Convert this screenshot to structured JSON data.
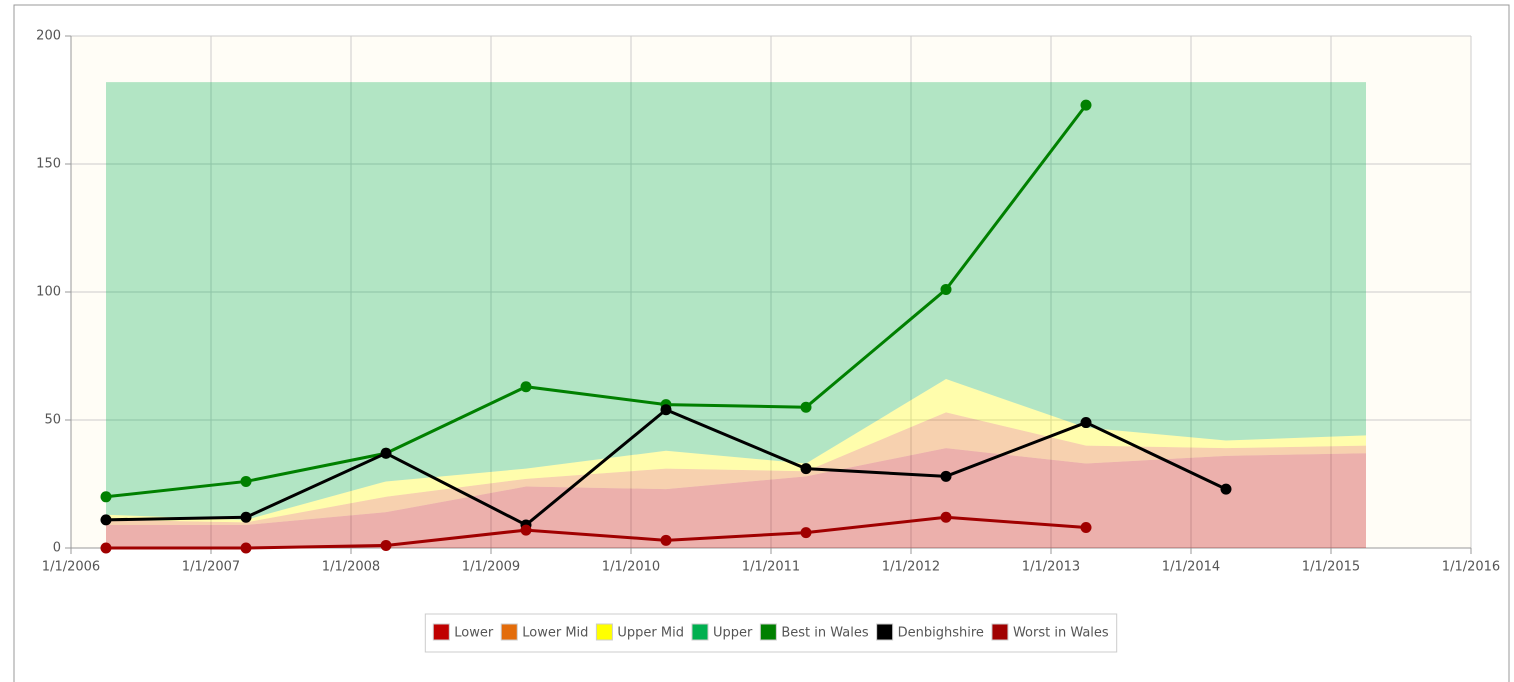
{
  "chart_data": {
    "type": "line",
    "x": [
      2006.25,
      2007.25,
      2008.25,
      2009.25,
      2010.25,
      2011.25,
      2012.25,
      2013.25,
      2014.25,
      2015.25
    ],
    "xlim": [
      2006,
      2016
    ],
    "xticks": [
      {
        "value": 2006,
        "label": "1/1/2006"
      },
      {
        "value": 2007,
        "label": "1/1/2007"
      },
      {
        "value": 2008,
        "label": "1/1/2008"
      },
      {
        "value": 2009,
        "label": "1/1/2009"
      },
      {
        "value": 2010,
        "label": "1/1/2010"
      },
      {
        "value": 2011,
        "label": "1/1/2011"
      },
      {
        "value": 2012,
        "label": "1/1/2012"
      },
      {
        "value": 2013,
        "label": "1/1/2013"
      },
      {
        "value": 2014,
        "label": "1/1/2014"
      },
      {
        "value": 2015,
        "label": "1/1/2015"
      },
      {
        "value": 2016,
        "label": "1/1/2016"
      }
    ],
    "ylim": [
      0,
      200
    ],
    "yticks": [
      0,
      50,
      100,
      150,
      200
    ],
    "grid": true,
    "legend": "bottom",
    "areas": [
      {
        "name": "Lower",
        "color": "#c00000",
        "values": [
          9,
          9,
          14,
          24,
          23,
          28,
          39,
          33,
          36,
          37
        ]
      },
      {
        "name": "Lower Mid",
        "color": "#e36c0a",
        "values": [
          2,
          1,
          6,
          3,
          8,
          2,
          14,
          7,
          3,
          3
        ]
      },
      {
        "name": "Upper Mid",
        "color": "#ffff00",
        "values": [
          2,
          1,
          6,
          4,
          7,
          3,
          13,
          7,
          3,
          4
        ]
      },
      {
        "name": "Upper",
        "color": "#00b050",
        "values": [
          169,
          171,
          156,
          151,
          144,
          149,
          116,
          135,
          140,
          138
        ]
      }
    ],
    "series": [
      {
        "name": "Best in Wales",
        "color": "#008000",
        "values": [
          20,
          26,
          37,
          63,
          56,
          55,
          101,
          173,
          null,
          null
        ]
      },
      {
        "name": "Denbighshire",
        "color": "#000000",
        "values": [
          11,
          12,
          37,
          9,
          54,
          31,
          28,
          49,
          23,
          null
        ]
      },
      {
        "name": "Worst in Wales",
        "color": "#a00000",
        "values": [
          0,
          0,
          1,
          7,
          3,
          6,
          12,
          8,
          null,
          null
        ]
      }
    ]
  }
}
